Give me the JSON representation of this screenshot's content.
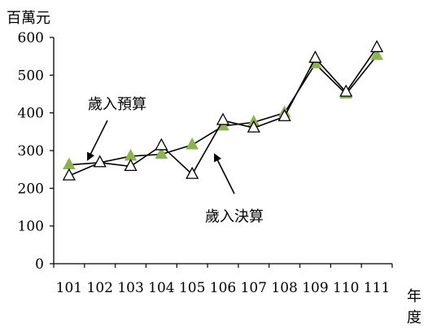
{
  "chart_data": {
    "type": "line",
    "y_unit_label": "百萬元",
    "x_unit_label": [
      "年",
      "度"
    ],
    "categories": [
      "101",
      "102",
      "103",
      "104",
      "105",
      "106",
      "107",
      "108",
      "109",
      "110",
      "111"
    ],
    "ylim": [
      0,
      600
    ],
    "yticks": [
      0,
      100,
      200,
      300,
      400,
      500,
      600
    ],
    "grid": false,
    "series": [
      {
        "name": "歲入預算",
        "marker": "triangle-filled",
        "color": "#8cb254",
        "values": [
          262,
          268,
          285,
          290,
          315,
          365,
          375,
          400,
          530,
          450,
          552
        ]
      },
      {
        "name": "歲入決算",
        "marker": "triangle-open",
        "color": "#000000",
        "values": [
          233,
          268,
          258,
          313,
          237,
          380,
          360,
          390,
          545,
          455,
          573
        ]
      }
    ],
    "annotations": [
      {
        "text": "歲入預算",
        "series": 0,
        "label_x_category": "102",
        "label_y_value": 425,
        "arrow_target_x": "102",
        "arrow_target_y": 275
      },
      {
        "text": "歲入決算",
        "series": 1,
        "label_x_category": "106",
        "label_y_value": 125,
        "arrow_target_x": "105.5",
        "arrow_target_y": 290
      }
    ]
  }
}
